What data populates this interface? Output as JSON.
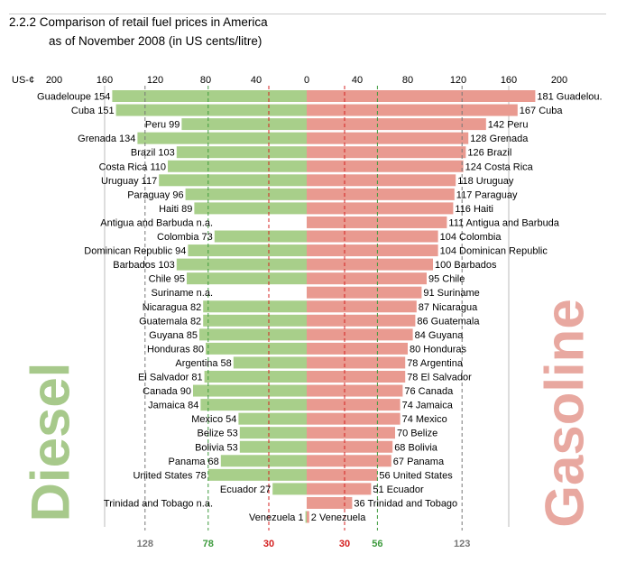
{
  "title": {
    "number": "2.2.2",
    "line1": "Comparison of retail fuel prices in America",
    "line2": "as of November 2008 (in US cents/litre)"
  },
  "big_labels": {
    "left": "Diesel",
    "right": "Gasoline"
  },
  "colors": {
    "diesel_bar": "#a8cf8a",
    "gasoline_bar": "#e99a90",
    "diesel_text": "#a7c98b",
    "gasoline_text": "#e8a8a0",
    "ref_green": "#3e9b3e",
    "ref_red": "#d42020",
    "ref_grey": "#777777"
  },
  "chart_data": {
    "type": "bar",
    "orientation": "horizontal-back-to-back",
    "unit_label": "US-¢",
    "xlim": [
      -200,
      200
    ],
    "ticks": [
      200,
      160,
      120,
      80,
      40,
      0,
      40,
      80,
      120,
      160,
      200
    ],
    "series": [
      {
        "name": "Diesel",
        "side": "left",
        "labels": [
          "Guadeloupe",
          "Cuba",
          "Peru",
          "Grenada",
          "Brazil",
          "Costa Rica",
          "Uruguay",
          "Paraguay",
          "Haiti",
          "Antigua and Barbuda",
          "Colombia",
          "Dominican Republic",
          "Barbados",
          "Chile",
          "Suriname",
          "Nicaragua",
          "Guatemala",
          "Guyana",
          "Honduras",
          "Argentina",
          "El Salvador",
          "Canada",
          "Jamaica",
          "Mexico",
          "Belize",
          "Bolivia",
          "Panama",
          "United States",
          "Ecuador",
          "Trinidad and Tobago",
          "Venezuela"
        ],
        "values": [
          154,
          151,
          99,
          134,
          103,
          110,
          117,
          96,
          89,
          null,
          73,
          94,
          103,
          95,
          null,
          82,
          82,
          85,
          80,
          58,
          81,
          90,
          84,
          54,
          53,
          53,
          68,
          78,
          27,
          null,
          1
        ]
      },
      {
        "name": "Gasoline",
        "side": "right",
        "labels": [
          "Guadelou.",
          "Cuba",
          "Peru",
          "Grenada",
          "Brazil",
          "Costa Rica",
          "Uruguay",
          "Paraguay",
          "Haiti",
          "Antigua and Barbuda",
          "Colombia",
          "Dominican Republic",
          "Barbados",
          "Chile",
          "Suriname",
          "Nicaragua",
          "Guatemala",
          "Guyana",
          "Honduras",
          "Argentina",
          "El Salvador",
          "Canada",
          "Jamaica",
          "Mexico",
          "Belize",
          "Bolivia",
          "Panama",
          "United States",
          "Ecuador",
          "Trinidad and Tobago",
          "Venezuela"
        ],
        "values": [
          181,
          167,
          142,
          128,
          126,
          124,
          118,
          117,
          116,
          111,
          104,
          104,
          100,
          95,
          91,
          87,
          86,
          84,
          80,
          78,
          78,
          76,
          74,
          74,
          70,
          68,
          67,
          56,
          51,
          36,
          2
        ]
      }
    ],
    "na_text": "n.a.",
    "reference_lines": [
      {
        "side": "left",
        "value": 128,
        "label": "128",
        "color": "grey"
      },
      {
        "side": "left",
        "value": 78,
        "label": "78",
        "color": "green"
      },
      {
        "side": "left",
        "value": 30,
        "label": "30",
        "color": "red"
      },
      {
        "side": "right",
        "value": 30,
        "label": "30",
        "color": "red"
      },
      {
        "side": "right",
        "value": 56,
        "label": "56",
        "color": "green"
      },
      {
        "side": "right",
        "value": 123,
        "label": "123",
        "color": "grey"
      }
    ]
  }
}
